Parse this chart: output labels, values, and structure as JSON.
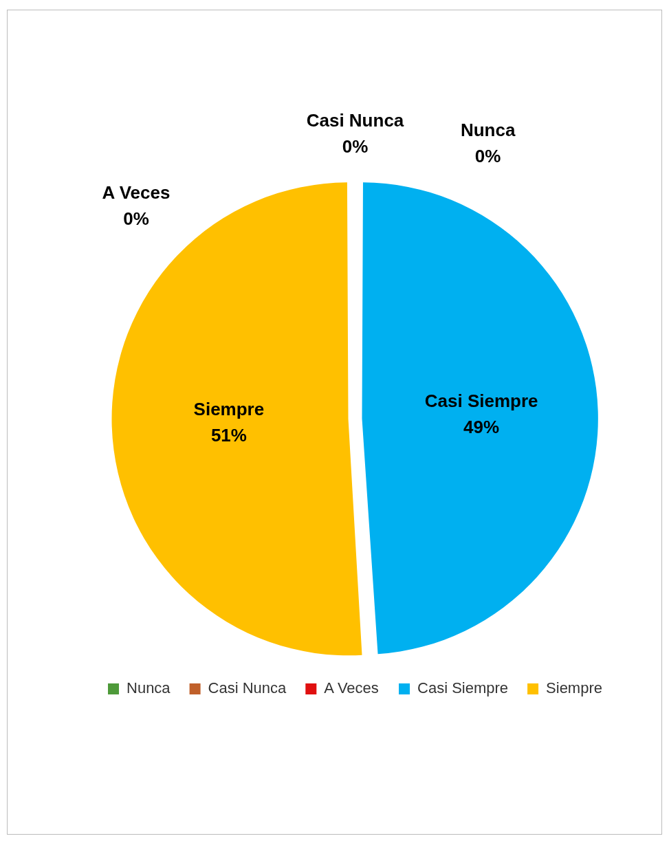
{
  "chart_data": {
    "type": "pie",
    "categories": [
      "Nunca",
      "Casi Nunca",
      "A Veces",
      "Casi Siempre",
      "Siempre"
    ],
    "values": [
      0,
      0,
      0,
      49,
      51
    ],
    "colors": [
      "#4e9a3a",
      "#c0602a",
      "#e01010",
      "#00b0f0",
      "#ffc000"
    ],
    "value_labels": [
      "0%",
      "0%",
      "0%",
      "49%",
      "51%"
    ],
    "legend": "bottom"
  }
}
